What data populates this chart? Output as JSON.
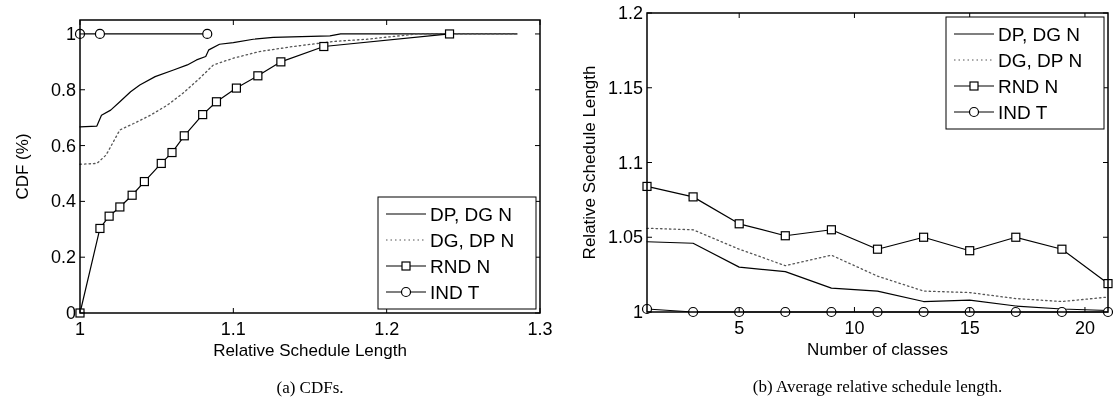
{
  "chart_data": [
    {
      "type": "line",
      "xlabel": "Relative Schedule Length",
      "ylabel": "CDF (%)",
      "xlim": [
        1,
        1.3
      ],
      "xticks": [
        1,
        1.1,
        1.2,
        1.3
      ],
      "ylim": [
        0,
        1.05
      ],
      "yticks": [
        0,
        0.2,
        0.4,
        0.6,
        0.8,
        1
      ],
      "grid": false,
      "legend": "bottom right",
      "annotations": [
        "(a) CDFs."
      ],
      "series": [
        {
          "name": "DP, DG N",
          "color": "#000000",
          "line_style": "solid",
          "marker": "none",
          "x": [
            1,
            1.011,
            1.014,
            1.02,
            1.026,
            1.033,
            1.039,
            1.049,
            1.061,
            1.07,
            1.076,
            1.082,
            1.084,
            1.091,
            1.1,
            1.113,
            1.126,
            1.163,
            1.17,
            1.285
          ],
          "values": [
            0.667,
            0.67,
            0.709,
            0.727,
            0.757,
            0.793,
            0.817,
            0.847,
            0.871,
            0.889,
            0.907,
            0.919,
            0.943,
            0.963,
            0.969,
            0.981,
            0.988,
            0.993,
            1,
            1
          ]
        },
        {
          "name": "DG, DP N",
          "color": "#555555",
          "line_style": "dotted",
          "marker": "none",
          "x": [
            1,
            1.011,
            1.017,
            1.026,
            1.035,
            1.046,
            1.057,
            1.067,
            1.078,
            1.087,
            1.1,
            1.117,
            1.139,
            1.165,
            1.187,
            1.22,
            1.285
          ],
          "values": [
            0.533,
            0.536,
            0.566,
            0.656,
            0.679,
            0.709,
            0.745,
            0.787,
            0.841,
            0.889,
            0.913,
            0.937,
            0.955,
            0.973,
            0.981,
            1,
            1
          ]
        },
        {
          "name": "RND N",
          "color": "#000000",
          "line_style": "solid",
          "marker": "square",
          "x": [
            1,
            1.013,
            1.019,
            1.026,
            1.034,
            1.042,
            1.053,
            1.06,
            1.068,
            1.08,
            1.089,
            1.102,
            1.116,
            1.131,
            1.159,
            1.241
          ],
          "values": [
            0,
            0.303,
            0.347,
            0.38,
            0.422,
            0.471,
            0.536,
            0.575,
            0.635,
            0.711,
            0.757,
            0.806,
            0.85,
            0.9,
            0.955,
            1
          ]
        },
        {
          "name": "IND T",
          "color": "#000000",
          "line_style": "solid",
          "marker": "circle",
          "x": [
            1,
            1.013,
            1.083
          ],
          "values": [
            1,
            1,
            1
          ]
        }
      ]
    },
    {
      "type": "line",
      "xlabel": "Number of classes",
      "ylabel": "Relative Schedule Length",
      "xlim": [
        1,
        21
      ],
      "xticks": [
        5,
        10,
        15,
        20
      ],
      "ylim": [
        1,
        1.2
      ],
      "yticks": [
        1,
        1.05,
        1.1,
        1.15,
        1.2
      ],
      "grid": false,
      "legend": "top right",
      "annotations": [
        "(b) Average relative schedule length."
      ],
      "x": [
        1,
        3,
        5,
        7,
        9,
        11,
        13,
        15,
        17,
        19,
        21
      ],
      "series": [
        {
          "name": "DP, DG N",
          "color": "#000000",
          "line_style": "solid",
          "marker": "none",
          "values": [
            1.047,
            1.046,
            1.03,
            1.027,
            1.016,
            1.014,
            1.007,
            1.008,
            1.004,
            1.002,
            1.001
          ]
        },
        {
          "name": "DG, DP N",
          "color": "#555555",
          "line_style": "dotted",
          "marker": "none",
          "values": [
            1.056,
            1.055,
            1.042,
            1.031,
            1.038,
            1.024,
            1.014,
            1.013,
            1.009,
            1.007,
            1.01
          ]
        },
        {
          "name": "RND N",
          "color": "#000000",
          "line_style": "solid",
          "marker": "square",
          "values": [
            1.084,
            1.077,
            1.059,
            1.051,
            1.055,
            1.042,
            1.05,
            1.041,
            1.05,
            1.042,
            1.019
          ]
        },
        {
          "name": "IND T",
          "color": "#000000",
          "line_style": "solid",
          "marker": "circle",
          "values": [
            1.002,
            1,
            1,
            1,
            1,
            1,
            1,
            1,
            1,
            1,
            1
          ]
        }
      ]
    }
  ]
}
